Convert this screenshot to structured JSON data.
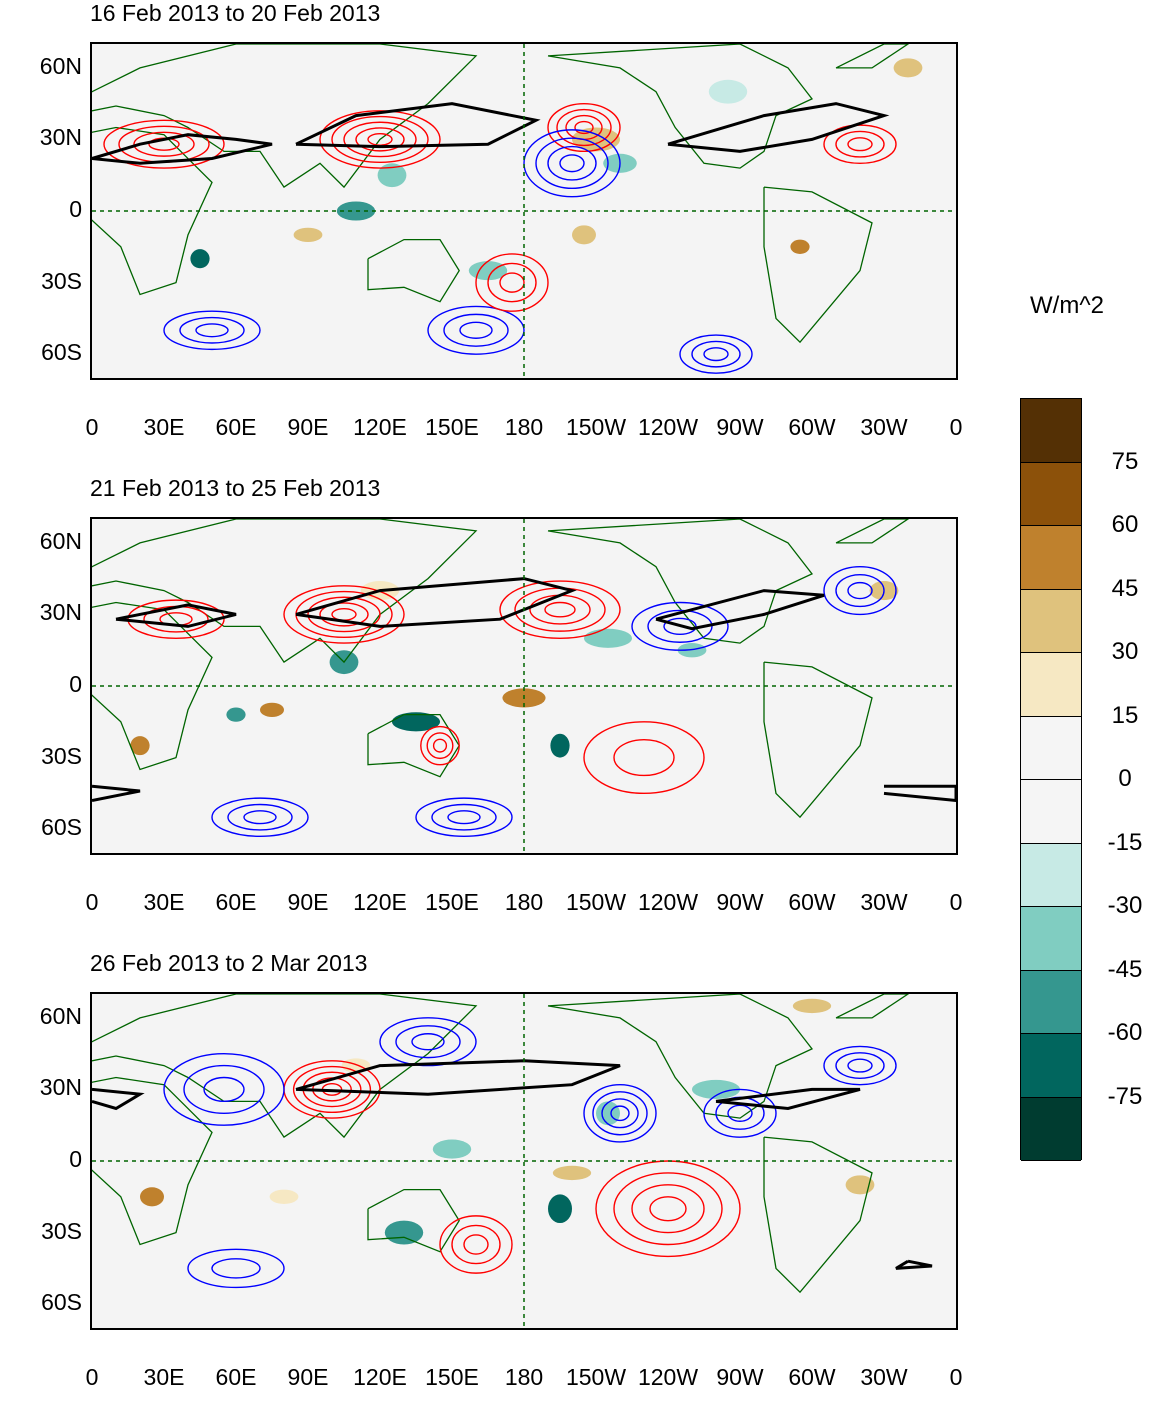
{
  "figure": {
    "units": "W/m^2",
    "panels": [
      {
        "title": "16 Feb 2013 to 20 Feb 2013"
      },
      {
        "title": "21 Feb 2013 to 25 Feb 2013"
      },
      {
        "title": "26 Feb 2013 to 2 Mar 2013"
      }
    ],
    "lat_ticks": [
      "60N",
      "30N",
      "0",
      "30S",
      "60S"
    ],
    "lon_ticks": [
      "0",
      "30E",
      "60E",
      "90E",
      "120E",
      "150E",
      "180",
      "150W",
      "120W",
      "90W",
      "60W",
      "30W",
      "0"
    ],
    "colorbar_labels": [
      "75",
      "60",
      "45",
      "30",
      "15",
      "0",
      "-15",
      "-30",
      "-45",
      "-60",
      "-75"
    ],
    "colorbar_colors": [
      "#543005",
      "#8c510a",
      "#bf812d",
      "#dfc27d",
      "#f6e8c3",
      "#f5f5f5",
      "#f5f5f5",
      "#c7eae5",
      "#80cdc1",
      "#35978f",
      "#01665e",
      "#003c30"
    ],
    "contour_colors": {
      "positive": "#ff0000",
      "negative": "#0000ff",
      "zero": "#000000",
      "coast": "#006400"
    }
  }
}
